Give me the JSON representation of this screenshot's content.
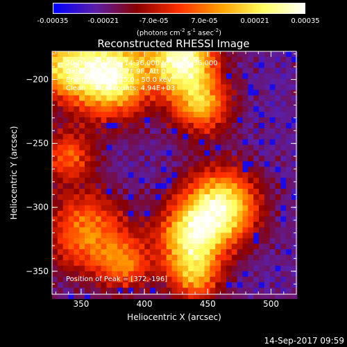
{
  "colorbar": {
    "ticks": [
      "-0.00035",
      "-0.00021",
      "-7.0e-05",
      "7.0e-05",
      "0.00021",
      "0.00035"
    ],
    "unit_main": "(photons cm",
    "unit_sup1": "-2",
    "unit_mid1": " s",
    "unit_sup2": "-1",
    "unit_mid2": " asec",
    "unit_sup3": "-2",
    "unit_end": ")",
    "range": [
      -0.00035,
      0.00035
    ]
  },
  "annotations": {
    "line1": "20-Dec-2014 06:14:36.000 to 06:24:36.000",
    "line2": "Detectors: 3F 6F 7F 9F, Att 0",
    "line3": "Energy Range: 25.0 - 50.0 keV",
    "line4": "Clean    Total counts: 4.94E+03",
    "peak": "Position of Peak = [372,-196]"
  },
  "timestamp": "14-Sep-2017 09:59",
  "chart_data": {
    "type": "heatmap",
    "title": "Reconstructed RHESSI Image",
    "xlabel": "Heliocentric X (arcsec)",
    "ylabel": "Heliocentric Y (arcsec)",
    "xlim": [
      327,
      520
    ],
    "ylim": [
      -368,
      -178
    ],
    "xticks": [
      350,
      400,
      450,
      500
    ],
    "yticks": [
      -200,
      -250,
      -300,
      -350
    ],
    "colormap": [
      "#0000ff",
      "#5a1faa",
      "#8a0000",
      "#ff3000",
      "#ffa000",
      "#ffff60",
      "#ffffff"
    ],
    "hotspots": [
      {
        "x": 372,
        "y": -196,
        "amp": 1.0,
        "r": 22
      },
      {
        "x": 430,
        "y": -184,
        "amp": 0.95,
        "r": 18
      },
      {
        "x": 335,
        "y": -190,
        "amp": 0.6,
        "r": 16
      },
      {
        "x": 445,
        "y": -220,
        "amp": 0.6,
        "r": 16
      },
      {
        "x": 460,
        "y": -300,
        "amp": 0.9,
        "r": 20
      },
      {
        "x": 435,
        "y": -325,
        "amp": 0.7,
        "r": 18
      },
      {
        "x": 355,
        "y": -320,
        "amp": 0.55,
        "r": 22
      },
      {
        "x": 340,
        "y": -260,
        "amp": 0.45,
        "r": 14
      },
      {
        "x": 440,
        "y": -355,
        "amp": 0.5,
        "r": 14
      },
      {
        "x": 385,
        "y": -345,
        "amp": 0.45,
        "r": 14
      }
    ]
  }
}
